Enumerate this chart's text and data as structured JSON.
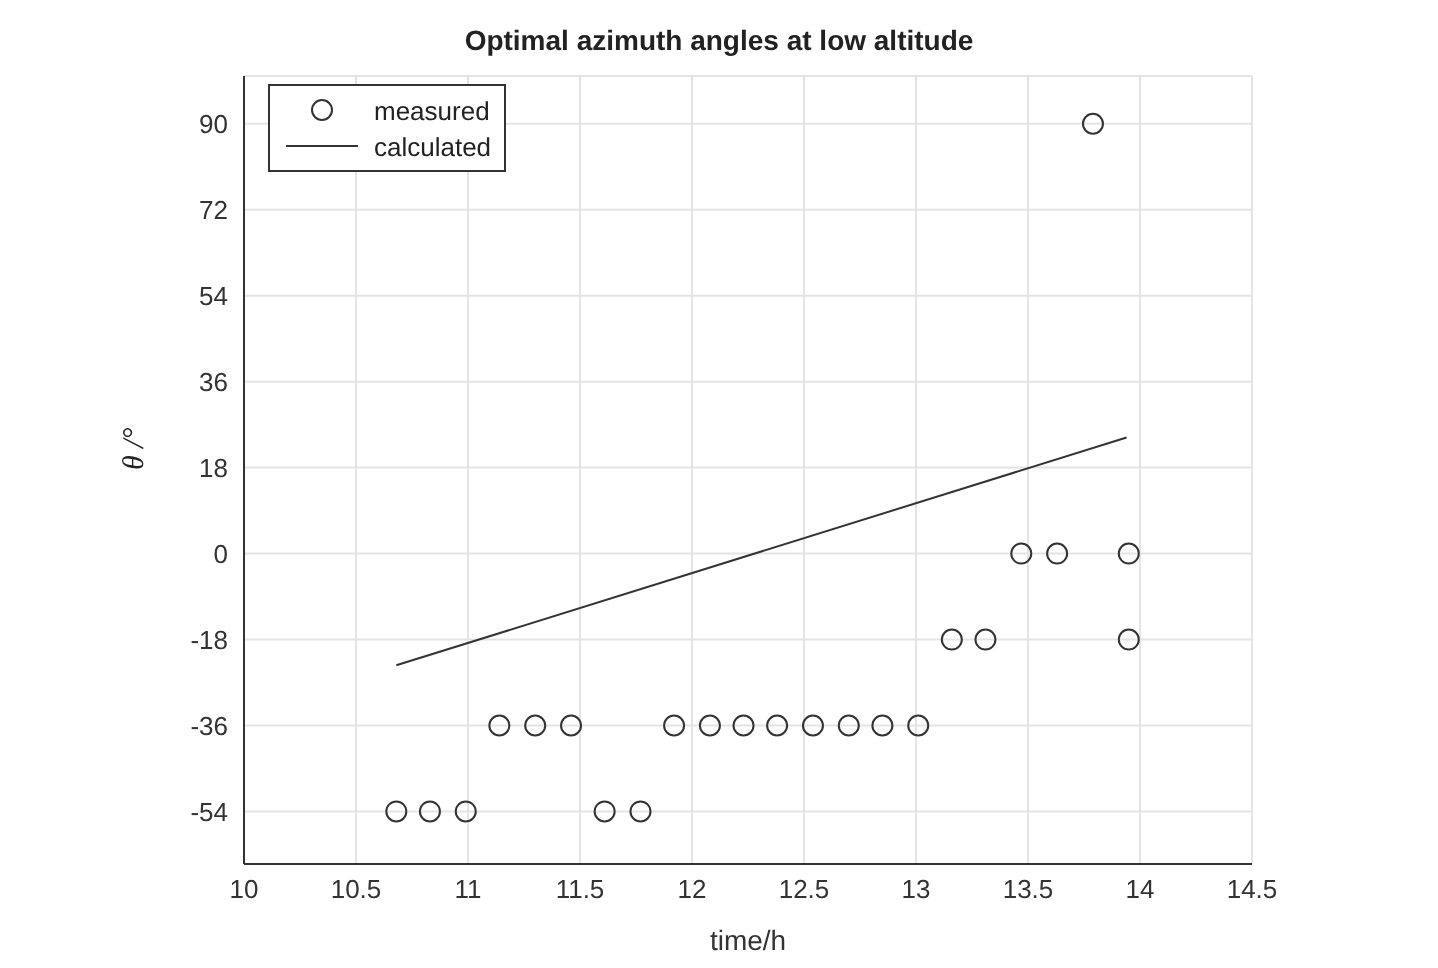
{
  "chart_data": {
    "type": "scatter",
    "title": "Optimal azimuth angles at low altitude",
    "xlabel": "time/h",
    "ylabel": "θ /°",
    "series": [
      {
        "name": "measured",
        "marker": "circle",
        "color": "#333333",
        "x": [
          10.68,
          10.83,
          10.99,
          11.14,
          11.3,
          11.46,
          11.61,
          11.77,
          11.92,
          12.08,
          12.23,
          12.38,
          12.54,
          12.7,
          12.85,
          13.01,
          13.16,
          13.31,
          13.47,
          13.63,
          13.79,
          13.95,
          13.95
        ],
        "values": [
          -54,
          -54,
          -54,
          -36,
          -36,
          -36,
          -54,
          -54,
          -36,
          -36,
          -36,
          -36,
          -36,
          -36,
          -36,
          -36,
          -18,
          -18,
          0,
          0,
          90,
          0,
          -18
        ]
      },
      {
        "name": "calculated",
        "type": "line",
        "color": "#333333",
        "x": [
          10.68,
          13.94
        ],
        "values": [
          -23.4,
          24.3
        ]
      }
    ],
    "xlim": [
      10,
      14.5
    ],
    "xticks": [
      10,
      10.5,
      11,
      11.5,
      12,
      12.5,
      13,
      13.5,
      14,
      14.5
    ],
    "ylim": [
      -65,
      100
    ],
    "yticks": [
      -54,
      -36,
      -18,
      0,
      18,
      36,
      54,
      72,
      90
    ],
    "grid": true,
    "legend": "top left"
  }
}
